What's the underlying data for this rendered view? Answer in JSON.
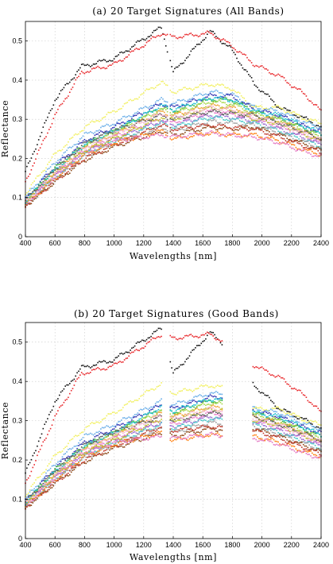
{
  "chart_data": [
    {
      "type": "scatter",
      "title": "(a) 20 Target Signatures (All Bands)",
      "xlabel": "Wavelengths [nm]",
      "ylabel": "Reflectance",
      "xlim": [
        400,
        2400
      ],
      "ylim": [
        0,
        0.55
      ],
      "xticks": [
        "400",
        "600",
        "800",
        "1000",
        "1200",
        "1400",
        "1600",
        "1800",
        "2000",
        "2200",
        "2400"
      ],
      "yticks": [
        "0",
        "0.1",
        "0.2",
        "0.3",
        "0.4",
        "0.5"
      ],
      "grid": true,
      "legend": "none",
      "band_sets": [
        [
          400,
          1330
        ],
        [
          1340,
          1360
        ],
        [
          1380,
          1790
        ],
        [
          1800,
          1810
        ],
        [
          1820,
          1930
        ],
        [
          1940,
          2400
        ]
      ],
      "series": [
        {
          "color": "#111111",
          "anchors": [
            [
              400,
              0.165
            ],
            [
              600,
              0.35
            ],
            [
              780,
              0.435
            ],
            [
              1000,
              0.455
            ],
            [
              1320,
              0.535
            ],
            [
              1400,
              0.42
            ],
            [
              1650,
              0.525
            ],
            [
              1790,
              0.48
            ],
            [
              1950,
              0.39
            ],
            [
              2120,
              0.33
            ],
            [
              2300,
              0.3
            ],
            [
              2400,
              0.28
            ]
          ]
        },
        {
          "color": "#e8262a",
          "anchors": [
            [
              400,
              0.14
            ],
            [
              600,
              0.31
            ],
            [
              780,
              0.42
            ],
            [
              1000,
              0.44
            ],
            [
              1320,
              0.52
            ],
            [
              1400,
              0.51
            ],
            [
              1650,
              0.52
            ],
            [
              1790,
              0.49
            ],
            [
              1950,
              0.44
            ],
            [
              2120,
              0.41
            ],
            [
              2300,
              0.36
            ],
            [
              2400,
              0.32
            ]
          ]
        },
        {
          "color": "#f2f060",
          "anchors": [
            [
              400,
              0.11
            ],
            [
              600,
              0.21
            ],
            [
              800,
              0.28
            ],
            [
              1000,
              0.32
            ],
            [
              1320,
              0.395
            ],
            [
              1400,
              0.37
            ],
            [
              1650,
              0.39
            ],
            [
              1790,
              0.38
            ],
            [
              1950,
              0.33
            ],
            [
              2120,
              0.33
            ],
            [
              2300,
              0.3
            ],
            [
              2400,
              0.29
            ]
          ]
        },
        {
          "color": "#6aaee8",
          "anchors": [
            [
              400,
              0.1
            ],
            [
              600,
              0.19
            ],
            [
              800,
              0.26
            ],
            [
              1000,
              0.29
            ],
            [
              1320,
              0.35
            ],
            [
              1400,
              0.34
            ],
            [
              1650,
              0.37
            ],
            [
              1790,
              0.365
            ],
            [
              1950,
              0.33
            ],
            [
              2120,
              0.32
            ],
            [
              2300,
              0.29
            ],
            [
              2400,
              0.28
            ]
          ]
        },
        {
          "color": "#2d2db0",
          "anchors": [
            [
              400,
              0.095
            ],
            [
              600,
              0.18
            ],
            [
              800,
              0.245
            ],
            [
              1000,
              0.28
            ],
            [
              1320,
              0.34
            ],
            [
              1400,
              0.33
            ],
            [
              1650,
              0.36
            ],
            [
              1790,
              0.36
            ],
            [
              1950,
              0.325
            ],
            [
              2120,
              0.31
            ],
            [
              2300,
              0.28
            ],
            [
              2400,
              0.27
            ]
          ]
        },
        {
          "color": "#3cb43c",
          "anchors": [
            [
              400,
              0.09
            ],
            [
              600,
              0.175
            ],
            [
              800,
              0.235
            ],
            [
              1000,
              0.27
            ],
            [
              1320,
              0.33
            ],
            [
              1400,
              0.32
            ],
            [
              1650,
              0.35
            ],
            [
              1790,
              0.35
            ],
            [
              1950,
              0.32
            ],
            [
              2120,
              0.3
            ],
            [
              2300,
              0.275
            ],
            [
              2400,
              0.26
            ]
          ]
        },
        {
          "color": "#a8d848",
          "anchors": [
            [
              400,
              0.09
            ],
            [
              600,
              0.17
            ],
            [
              800,
              0.23
            ],
            [
              1000,
              0.265
            ],
            [
              1320,
              0.325
            ],
            [
              1400,
              0.315
            ],
            [
              1650,
              0.345
            ],
            [
              1790,
              0.34
            ],
            [
              1950,
              0.315
            ],
            [
              2120,
              0.3
            ],
            [
              2300,
              0.27
            ],
            [
              2400,
              0.255
            ]
          ]
        },
        {
          "color": "#f0a030",
          "anchors": [
            [
              400,
              0.088
            ],
            [
              600,
              0.165
            ],
            [
              800,
              0.225
            ],
            [
              1000,
              0.26
            ],
            [
              1320,
              0.32
            ],
            [
              1400,
              0.31
            ],
            [
              1650,
              0.335
            ],
            [
              1790,
              0.33
            ],
            [
              1950,
              0.31
            ],
            [
              2120,
              0.295
            ],
            [
              2300,
              0.265
            ],
            [
              2400,
              0.25
            ]
          ]
        },
        {
          "color": "#e878c8",
          "anchors": [
            [
              400,
              0.085
            ],
            [
              600,
              0.16
            ],
            [
              800,
              0.22
            ],
            [
              1000,
              0.255
            ],
            [
              1320,
              0.3
            ],
            [
              1400,
              0.29
            ],
            [
              1650,
              0.32
            ],
            [
              1790,
              0.315
            ],
            [
              1950,
              0.3
            ],
            [
              2120,
              0.28
            ],
            [
              2300,
              0.255
            ],
            [
              2400,
              0.24
            ]
          ]
        },
        {
          "color": "#9a6ad0",
          "anchors": [
            [
              400,
              0.085
            ],
            [
              600,
              0.155
            ],
            [
              800,
              0.215
            ],
            [
              1000,
              0.25
            ],
            [
              1320,
              0.295
            ],
            [
              1400,
              0.285
            ],
            [
              1650,
              0.31
            ],
            [
              1790,
              0.305
            ],
            [
              1950,
              0.295
            ],
            [
              2120,
              0.275
            ],
            [
              2300,
              0.25
            ],
            [
              2400,
              0.235
            ]
          ]
        },
        {
          "color": "#44c8c8",
          "anchors": [
            [
              400,
              0.085
            ],
            [
              600,
              0.15
            ],
            [
              800,
              0.21
            ],
            [
              1000,
              0.245
            ],
            [
              1320,
              0.29
            ],
            [
              1400,
              0.28
            ],
            [
              1650,
              0.305
            ],
            [
              1790,
              0.3
            ],
            [
              1950,
              0.29
            ],
            [
              2120,
              0.27
            ],
            [
              2300,
              0.245
            ],
            [
              2400,
              0.23
            ]
          ]
        },
        {
          "color": "#a0a0a0",
          "anchors": [
            [
              400,
              0.08
            ],
            [
              600,
              0.145
            ],
            [
              800,
              0.205
            ],
            [
              1000,
              0.24
            ],
            [
              1320,
              0.28
            ],
            [
              1400,
              0.27
            ],
            [
              1650,
              0.295
            ],
            [
              1790,
              0.29
            ],
            [
              1950,
              0.285
            ],
            [
              2120,
              0.265
            ],
            [
              2300,
              0.24
            ],
            [
              2400,
              0.225
            ]
          ]
        },
        {
          "color": "#8b4513",
          "anchors": [
            [
              400,
              0.078
            ],
            [
              600,
              0.14
            ],
            [
              800,
              0.195
            ],
            [
              1000,
              0.23
            ],
            [
              1320,
              0.27
            ],
            [
              1400,
              0.26
            ],
            [
              1650,
              0.28
            ],
            [
              1790,
              0.275
            ],
            [
              1950,
              0.28
            ],
            [
              2120,
              0.26
            ],
            [
              2300,
              0.235
            ],
            [
              2400,
              0.22
            ]
          ]
        },
        {
          "color": "#c0392b",
          "anchors": [
            [
              400,
              0.08
            ],
            [
              600,
              0.142
            ],
            [
              800,
              0.2
            ],
            [
              1000,
              0.235
            ],
            [
              1320,
              0.285
            ],
            [
              1400,
              0.275
            ],
            [
              1650,
              0.285
            ],
            [
              1790,
              0.28
            ],
            [
              1950,
              0.275
            ],
            [
              2120,
              0.255
            ],
            [
              2300,
              0.23
            ],
            [
              2400,
              0.215
            ]
          ]
        },
        {
          "color": "#ff7f0e",
          "anchors": [
            [
              400,
              0.082
            ],
            [
              600,
              0.15
            ],
            [
              800,
              0.21
            ],
            [
              1000,
              0.24
            ],
            [
              1320,
              0.27
            ],
            [
              1400,
              0.25
            ],
            [
              1650,
              0.265
            ],
            [
              1790,
              0.26
            ],
            [
              1950,
              0.26
            ],
            [
              2120,
              0.245
            ],
            [
              2300,
              0.22
            ],
            [
              2400,
              0.21
            ]
          ]
        },
        {
          "color": "#e377c2",
          "anchors": [
            [
              400,
              0.083
            ],
            [
              600,
              0.155
            ],
            [
              800,
              0.215
            ],
            [
              1000,
              0.245
            ],
            [
              1320,
              0.26
            ],
            [
              1400,
              0.255
            ],
            [
              1650,
              0.265
            ],
            [
              1790,
              0.26
            ],
            [
              1950,
              0.255
            ],
            [
              2120,
              0.24
            ],
            [
              2300,
              0.215
            ],
            [
              2400,
              0.205
            ]
          ]
        },
        {
          "color": "#bcbd22",
          "anchors": [
            [
              400,
              0.09
            ],
            [
              600,
              0.16
            ],
            [
              800,
              0.22
            ],
            [
              1000,
              0.25
            ],
            [
              1320,
              0.305
            ],
            [
              1400,
              0.3
            ],
            [
              1650,
              0.33
            ],
            [
              1790,
              0.325
            ],
            [
              1950,
              0.3
            ],
            [
              2120,
              0.29
            ],
            [
              2300,
              0.26
            ],
            [
              2400,
              0.245
            ]
          ]
        },
        {
          "color": "#17becf",
          "anchors": [
            [
              400,
              0.092
            ],
            [
              600,
              0.17
            ],
            [
              800,
              0.235
            ],
            [
              1000,
              0.27
            ],
            [
              1320,
              0.335
            ],
            [
              1400,
              0.325
            ],
            [
              1650,
              0.355
            ],
            [
              1790,
              0.35
            ],
            [
              1950,
              0.32
            ],
            [
              2120,
              0.31
            ],
            [
              2300,
              0.28
            ],
            [
              2400,
              0.265
            ]
          ]
        },
        {
          "color": "#555555",
          "anchors": [
            [
              400,
              0.094
            ],
            [
              600,
              0.172
            ],
            [
              800,
              0.238
            ],
            [
              1000,
              0.272
            ],
            [
              1320,
              0.31
            ],
            [
              1400,
              0.3
            ],
            [
              1650,
              0.32
            ],
            [
              1790,
              0.315
            ],
            [
              1950,
              0.31
            ],
            [
              2120,
              0.29
            ],
            [
              2300,
              0.265
            ],
            [
              2400,
              0.25
            ]
          ]
        },
        {
          "color": "#f7b6d2",
          "anchors": [
            [
              400,
              0.088
            ],
            [
              600,
              0.162
            ],
            [
              800,
              0.228
            ],
            [
              1000,
              0.262
            ],
            [
              1320,
              0.315
            ],
            [
              1400,
              0.305
            ],
            [
              1650,
              0.33
            ],
            [
              1790,
              0.325
            ],
            [
              1950,
              0.305
            ],
            [
              2120,
              0.29
            ],
            [
              2300,
              0.262
            ],
            [
              2400,
              0.248
            ]
          ]
        }
      ]
    },
    {
      "type": "scatter",
      "title": "(b) 20 Target Signatures (Good Bands)",
      "xlabel": "Wavelengths [nm]",
      "ylabel": "Reflectance",
      "xlim": [
        400,
        2400
      ],
      "ylim": [
        0,
        0.55
      ],
      "xticks": [
        "400",
        "600",
        "800",
        "1000",
        "1200",
        "1400",
        "1600",
        "1800",
        "2000",
        "2200",
        "2400"
      ],
      "yticks": [
        "0",
        "0.1",
        "0.2",
        "0.3",
        "0.4",
        "0.5"
      ],
      "grid": true,
      "legend": "none",
      "band_sets": [
        [
          400,
          1320
        ],
        [
          1380,
          1730
        ],
        [
          1940,
          2400
        ]
      ],
      "series_from": "chart_data.0.series"
    }
  ]
}
